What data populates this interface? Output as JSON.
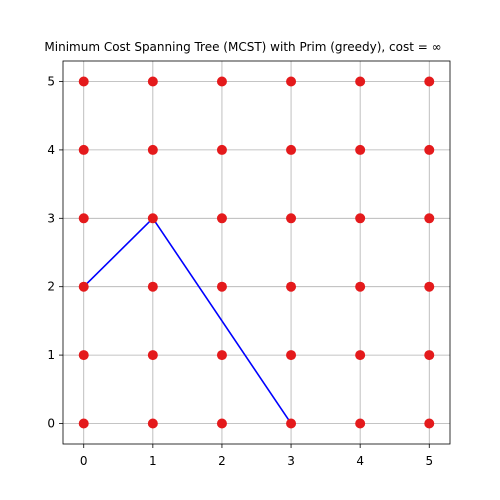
{
  "chart_data": {
    "type": "scatter",
    "title": "Minimum Cost Spanning Tree (MCST) with Prim (greedy), cost = ∞",
    "xlabel": "",
    "ylabel": "",
    "xlim": [
      -0.3,
      5.3
    ],
    "ylim": [
      -0.3,
      5.3
    ],
    "x_ticks": [
      "0",
      "1",
      "2",
      "3",
      "4",
      "5"
    ],
    "y_ticks": [
      "0",
      "1",
      "2",
      "3",
      "4",
      "5"
    ],
    "grid": true,
    "points": [
      [
        0,
        0
      ],
      [
        1,
        0
      ],
      [
        2,
        0
      ],
      [
        3,
        0
      ],
      [
        4,
        0
      ],
      [
        5,
        0
      ],
      [
        0,
        1
      ],
      [
        1,
        1
      ],
      [
        2,
        1
      ],
      [
        3,
        1
      ],
      [
        4,
        1
      ],
      [
        5,
        1
      ],
      [
        0,
        2
      ],
      [
        1,
        2
      ],
      [
        2,
        2
      ],
      [
        3,
        2
      ],
      [
        4,
        2
      ],
      [
        5,
        2
      ],
      [
        0,
        3
      ],
      [
        1,
        3
      ],
      [
        2,
        3
      ],
      [
        3,
        3
      ],
      [
        4,
        3
      ],
      [
        5,
        3
      ],
      [
        0,
        4
      ],
      [
        1,
        4
      ],
      [
        2,
        4
      ],
      [
        3,
        4
      ],
      [
        4,
        4
      ],
      [
        5,
        4
      ],
      [
        0,
        5
      ],
      [
        1,
        5
      ],
      [
        2,
        5
      ],
      [
        3,
        5
      ],
      [
        4,
        5
      ],
      [
        5,
        5
      ]
    ],
    "edges": [
      [
        [
          0,
          2
        ],
        [
          1,
          3
        ]
      ],
      [
        [
          1,
          3
        ],
        [
          3,
          0
        ]
      ]
    ],
    "point_color": "#e41a1c",
    "edge_color": "#0000ff"
  }
}
